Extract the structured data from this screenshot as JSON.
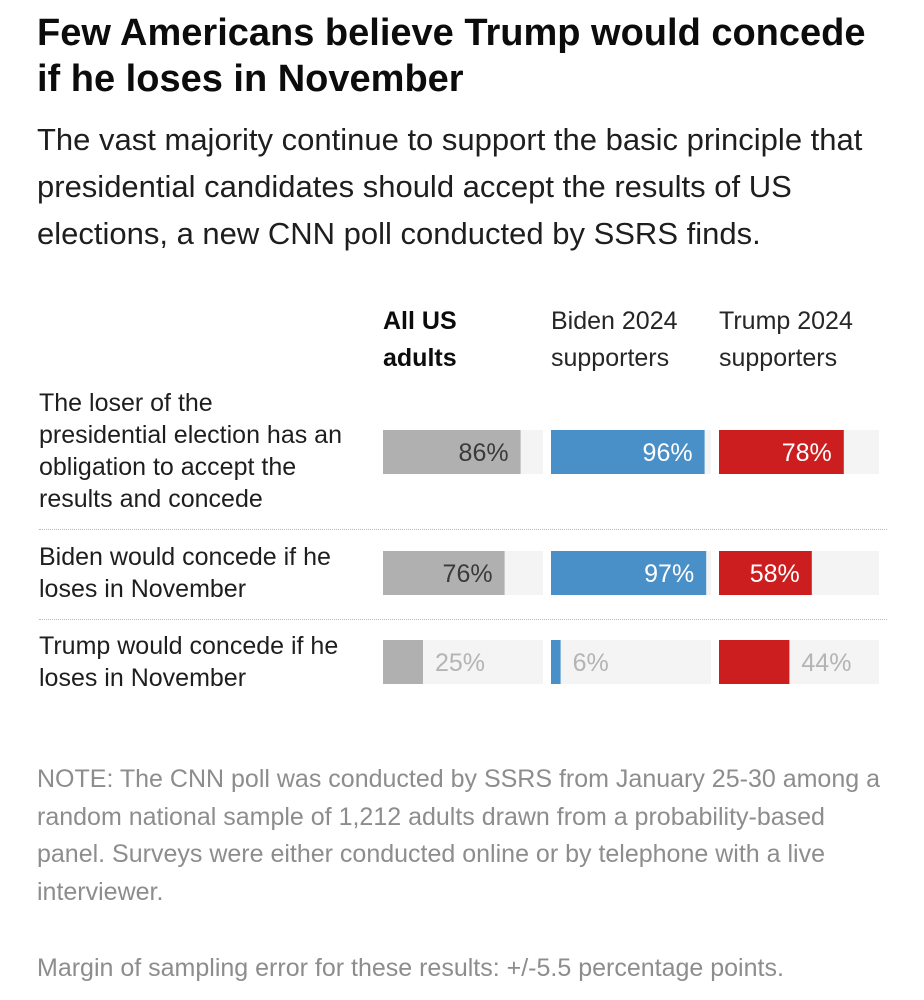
{
  "chart_data": {
    "type": "bar",
    "title": "Few Americans believe Trump would concede if he loses in November",
    "subtitle": "The vast majority continue to support the basic principle that presidential candidates should accept the results of US elections, a new CNN poll conducted by SSRS finds.",
    "columns": [
      {
        "line1": "All US",
        "line2": "adults",
        "color": "#b0b0b0"
      },
      {
        "line1": "Biden 2024",
        "line2": "supporters",
        "color": "#4a90c8"
      },
      {
        "line1": "Trump 2024",
        "line2": "supporters",
        "color": "#cc1e1e"
      }
    ],
    "rows": [
      {
        "label": [
          "The loser of the",
          "presidential election has an",
          "obligation to accept the",
          "results and concede"
        ],
        "values": [
          86,
          96,
          78
        ]
      },
      {
        "label": [
          "Biden would concede if he",
          "loses in November"
        ],
        "values": [
          76,
          97,
          58
        ]
      },
      {
        "label": [
          "Trump would concede if he",
          "loses in November"
        ],
        "values": [
          25,
          6,
          44
        ]
      }
    ],
    "unit": "%",
    "xlim": [
      0,
      100
    ],
    "track_color": "#f4f4f4"
  },
  "note": "NOTE: The CNN poll was conducted by SSRS from January 25-30 among a random national sample of 1,212 adults drawn from a probability-based panel. Surveys were either conducted online or by telephone with a live interviewer.",
  "margin": "Margin of sampling error for these results: +/-5.5 percentage points."
}
